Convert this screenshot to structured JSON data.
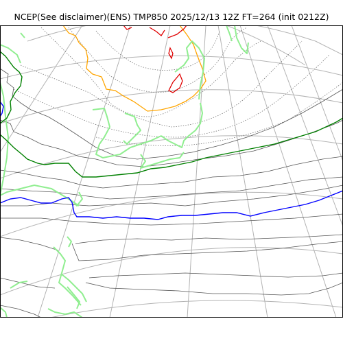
{
  "title": "NCEP(See disclaimer)(ENS) TMP850 2025/12/13 12Z FT=264 (init 0212Z)",
  "colors": {
    "background": "#ffffff",
    "frame": "#000000",
    "graticule": "#b3b3b3",
    "coastline": "#90ee90",
    "isotherm_minor": "#555555",
    "isotherm_dotted": "#777777",
    "isotherm_0": "#008000",
    "isotherm_minus6": "#0000ff",
    "isotherm_warm_orange": "#ffa500",
    "isotherm_warm_red": "#e00000"
  }
}
